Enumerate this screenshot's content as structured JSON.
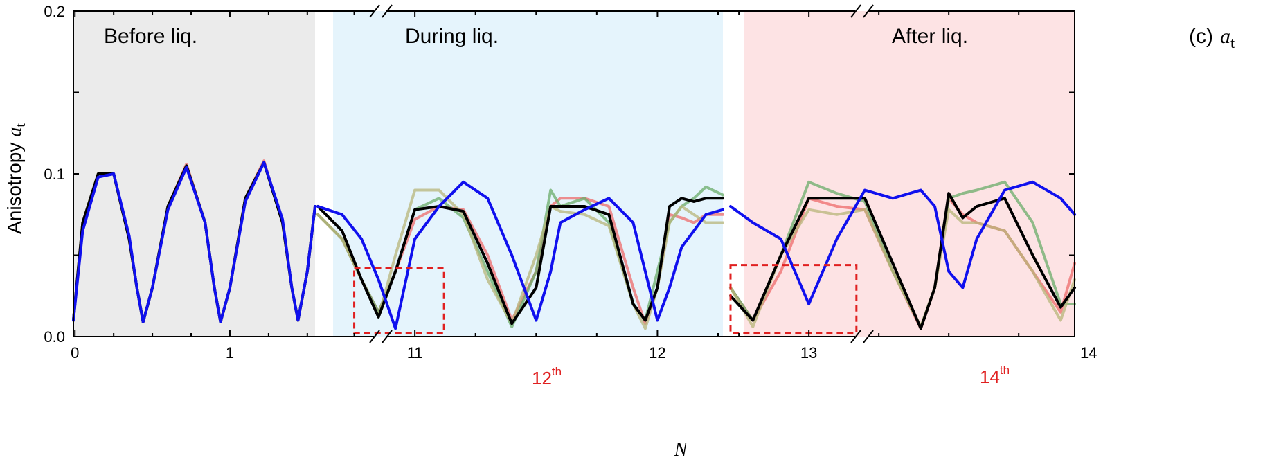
{
  "chart_data": {
    "type": "line",
    "panel_label": "(c)",
    "panel_label_symbol": "a",
    "panel_label_subscript": "t",
    "xlabel": "N",
    "ylabel": "Anisotropy",
    "ylabel_symbol": "a",
    "ylabel_subscript": "t",
    "ylim": [
      0,
      0.2
    ],
    "y_ticks": [
      "0.0",
      "0.1",
      "0.2"
    ],
    "x_ticks": [
      "0",
      "1",
      "11",
      "12",
      "13",
      "14"
    ],
    "broken_x_axis": true,
    "grid": false,
    "shading_colors": [
      "#ebebeb",
      "#e5f4fc",
      "#fde3e4"
    ],
    "series_colors": [
      "#ee6b6b",
      "#6aac6a",
      "#b7b57a",
      "#000000",
      "#1010ee"
    ],
    "segments": [
      {
        "title": "Before liq.",
        "xlim": [
          -0.01,
          1.55
        ],
        "series": [
          {
            "x": [
              -0.01,
              0.05,
              0.15,
              0.25,
              0.35,
              0.4,
              0.44,
              0.5,
              0.6,
              0.72,
              0.84,
              0.9,
              0.94,
              1.0,
              1.1,
              1.22,
              1.34,
              1.4,
              1.44,
              1.5,
              1.55
            ],
            "y": [
              0.01,
              0.07,
              0.1,
              0.1,
              0.06,
              0.03,
              0.009,
              0.03,
              0.08,
              0.106,
              0.07,
              0.03,
              0.009,
              0.03,
              0.085,
              0.108,
              0.07,
              0.03,
              0.01,
              0.04,
              0.08
            ]
          },
          {
            "x": [
              -0.01,
              0.05,
              0.15,
              0.25,
              0.35,
              0.4,
              0.44,
              0.5,
              0.6,
              0.72,
              0.84,
              0.9,
              0.94,
              1.0,
              1.1,
              1.22,
              1.34,
              1.4,
              1.44,
              1.5,
              1.55
            ],
            "y": [
              0.01,
              0.07,
              0.1,
              0.1,
              0.06,
              0.03,
              0.009,
              0.03,
              0.08,
              0.105,
              0.07,
              0.03,
              0.009,
              0.03,
              0.085,
              0.107,
              0.07,
              0.03,
              0.01,
              0.04,
              0.08
            ]
          },
          {
            "x": [
              -0.01,
              0.05,
              0.15,
              0.25,
              0.35,
              0.4,
              0.44,
              0.5,
              0.6,
              0.72,
              0.84,
              0.9,
              0.94,
              1.0,
              1.1,
              1.22,
              1.34,
              1.4,
              1.44,
              1.5,
              1.55
            ],
            "y": [
              0.01,
              0.07,
              0.1,
              0.1,
              0.06,
              0.03,
              0.009,
              0.03,
              0.08,
              0.105,
              0.07,
              0.03,
              0.009,
              0.03,
              0.085,
              0.107,
              0.07,
              0.03,
              0.01,
              0.04,
              0.08
            ]
          },
          {
            "x": [
              -0.01,
              0.05,
              0.15,
              0.25,
              0.35,
              0.4,
              0.44,
              0.5,
              0.6,
              0.72,
              0.84,
              0.9,
              0.94,
              1.0,
              1.1,
              1.22,
              1.34,
              1.4,
              1.44,
              1.5,
              1.55
            ],
            "y": [
              0.01,
              0.07,
              0.1,
              0.1,
              0.06,
              0.03,
              0.009,
              0.03,
              0.08,
              0.105,
              0.07,
              0.03,
              0.009,
              0.03,
              0.085,
              0.107,
              0.07,
              0.03,
              0.01,
              0.04,
              0.08
            ]
          },
          {
            "x": [
              -0.01,
              0.05,
              0.15,
              0.25,
              0.35,
              0.4,
              0.44,
              0.5,
              0.6,
              0.72,
              0.84,
              0.9,
              0.94,
              1.0,
              1.1,
              1.22,
              1.34,
              1.4,
              1.44,
              1.5,
              1.55
            ],
            "y": [
              0.01,
              0.065,
              0.098,
              0.1,
              0.062,
              0.03,
              0.009,
              0.03,
              0.078,
              0.104,
              0.07,
              0.03,
              0.009,
              0.03,
              0.083,
              0.107,
              0.072,
              0.03,
              0.01,
              0.04,
              0.08
            ]
          }
        ]
      },
      {
        "title": "During liq.",
        "xlim": [
          10.6,
          12.27
        ],
        "series": [
          {
            "x": [
              10.6,
              10.7,
              10.78,
              10.85,
              10.92,
              11.0,
              11.1,
              11.2,
              11.3,
              11.4,
              11.5,
              11.56,
              11.6,
              11.7,
              11.8,
              11.9,
              11.95,
              12.0,
              12.05,
              12.1,
              12.15,
              12.2,
              12.27
            ],
            "y": [
              0.075,
              0.06,
              0.035,
              0.015,
              0.04,
              0.072,
              0.08,
              0.078,
              0.05,
              0.01,
              0.04,
              0.08,
              0.085,
              0.085,
              0.08,
              0.03,
              0.008,
              0.03,
              0.075,
              0.073,
              0.07,
              0.075,
              0.075
            ]
          },
          {
            "x": [
              10.6,
              10.7,
              10.78,
              10.85,
              10.92,
              11.0,
              11.1,
              11.2,
              11.3,
              11.4,
              11.5,
              11.56,
              11.6,
              11.7,
              11.8,
              11.9,
              11.95,
              12.0,
              12.05,
              12.1,
              12.15,
              12.2,
              12.27
            ],
            "y": [
              0.075,
              0.06,
              0.035,
              0.015,
              0.04,
              0.078,
              0.085,
              0.073,
              0.04,
              0.006,
              0.04,
              0.09,
              0.08,
              0.085,
              0.07,
              0.02,
              0.01,
              0.04,
              0.07,
              0.08,
              0.085,
              0.092,
              0.087
            ]
          },
          {
            "x": [
              10.6,
              10.7,
              10.78,
              10.85,
              10.92,
              11.0,
              11.1,
              11.2,
              11.3,
              11.4,
              11.5,
              11.56,
              11.6,
              11.7,
              11.8,
              11.9,
              11.95,
              12.0,
              12.05,
              12.1,
              12.15,
              12.2,
              12.27
            ],
            "y": [
              0.075,
              0.06,
              0.035,
              0.012,
              0.05,
              0.09,
              0.09,
              0.075,
              0.035,
              0.008,
              0.05,
              0.08,
              0.077,
              0.075,
              0.068,
              0.02,
              0.005,
              0.03,
              0.07,
              0.08,
              0.075,
              0.07,
              0.07
            ]
          },
          {
            "x": [
              10.6,
              10.7,
              10.78,
              10.85,
              10.92,
              11.0,
              11.1,
              11.2,
              11.3,
              11.4,
              11.5,
              11.56,
              11.6,
              11.7,
              11.8,
              11.9,
              11.95,
              12.0,
              12.05,
              12.1,
              12.15,
              12.2,
              12.27
            ],
            "y": [
              0.08,
              0.065,
              0.035,
              0.012,
              0.04,
              0.078,
              0.08,
              0.077,
              0.045,
              0.008,
              0.03,
              0.08,
              0.08,
              0.08,
              0.075,
              0.02,
              0.01,
              0.03,
              0.08,
              0.085,
              0.083,
              0.085,
              0.085
            ]
          },
          {
            "x": [
              10.6,
              10.7,
              10.78,
              10.85,
              10.92,
              11.0,
              11.1,
              11.2,
              11.3,
              11.4,
              11.5,
              11.56,
              11.6,
              11.7,
              11.8,
              11.9,
              11.95,
              12.0,
              12.05,
              12.1,
              12.15,
              12.2,
              12.27
            ],
            "y": [
              0.08,
              0.075,
              0.06,
              0.035,
              0.005,
              0.06,
              0.08,
              0.095,
              0.085,
              0.05,
              0.01,
              0.04,
              0.07,
              0.078,
              0.085,
              0.07,
              0.04,
              0.01,
              0.03,
              0.055,
              0.065,
              0.075,
              0.078
            ]
          }
        ]
      },
      {
        "title": "After liq.",
        "xlim": [
          12.72,
          13.95
        ],
        "series": [
          {
            "x": [
              12.72,
              12.8,
              12.9,
              13.0,
              13.1,
              13.2,
              13.3,
              13.4,
              13.45,
              13.5,
              13.55,
              13.6,
              13.7,
              13.8,
              13.9,
              13.95
            ],
            "y": [
              0.03,
              0.01,
              0.04,
              0.085,
              0.08,
              0.078,
              0.04,
              0.005,
              0.03,
              0.085,
              0.075,
              0.07,
              0.065,
              0.04,
              0.015,
              0.045
            ]
          },
          {
            "x": [
              12.72,
              12.8,
              12.9,
              13.0,
              13.1,
              13.2,
              13.3,
              13.4,
              13.45,
              13.5,
              13.55,
              13.6,
              13.7,
              13.8,
              13.9,
              13.95
            ],
            "y": [
              0.03,
              0.01,
              0.05,
              0.095,
              0.088,
              0.083,
              0.04,
              0.006,
              0.03,
              0.085,
              0.088,
              0.09,
              0.095,
              0.07,
              0.02,
              0.02
            ]
          },
          {
            "x": [
              12.72,
              12.8,
              12.9,
              13.0,
              13.1,
              13.2,
              13.3,
              13.4,
              13.45,
              13.5,
              13.55,
              13.6,
              13.7,
              13.8,
              13.9,
              13.95
            ],
            "y": [
              0.03,
              0.006,
              0.05,
              0.078,
              0.075,
              0.078,
              0.04,
              0.006,
              0.03,
              0.078,
              0.07,
              0.07,
              0.065,
              0.04,
              0.01,
              0.035
            ]
          },
          {
            "x": [
              12.72,
              12.8,
              12.9,
              13.0,
              13.1,
              13.2,
              13.3,
              13.4,
              13.45,
              13.5,
              13.55,
              13.6,
              13.7,
              13.8,
              13.9,
              13.95
            ],
            "y": [
              0.025,
              0.01,
              0.05,
              0.085,
              0.085,
              0.085,
              0.045,
              0.005,
              0.03,
              0.088,
              0.073,
              0.08,
              0.085,
              0.05,
              0.018,
              0.03
            ]
          },
          {
            "x": [
              12.72,
              12.8,
              12.9,
              13.0,
              13.1,
              13.2,
              13.3,
              13.4,
              13.45,
              13.5,
              13.55,
              13.6,
              13.7,
              13.8,
              13.9,
              13.95
            ],
            "y": [
              0.08,
              0.07,
              0.06,
              0.02,
              0.06,
              0.09,
              0.085,
              0.09,
              0.08,
              0.04,
              0.03,
              0.06,
              0.09,
              0.095,
              0.085,
              0.075
            ]
          }
        ]
      }
    ],
    "annotations": [
      {
        "text": "12",
        "sup": "th",
        "color": "#e02020"
      },
      {
        "text": "14",
        "sup": "th",
        "color": "#e02020"
      }
    ],
    "highlight_boxes": [
      {
        "segment": 1,
        "x": [
          10.75,
          11.12
        ],
        "y": [
          0.002,
          0.042
        ]
      },
      {
        "segment": 2,
        "x": [
          12.72,
          13.17
        ],
        "y": [
          0.002,
          0.044
        ]
      }
    ]
  }
}
